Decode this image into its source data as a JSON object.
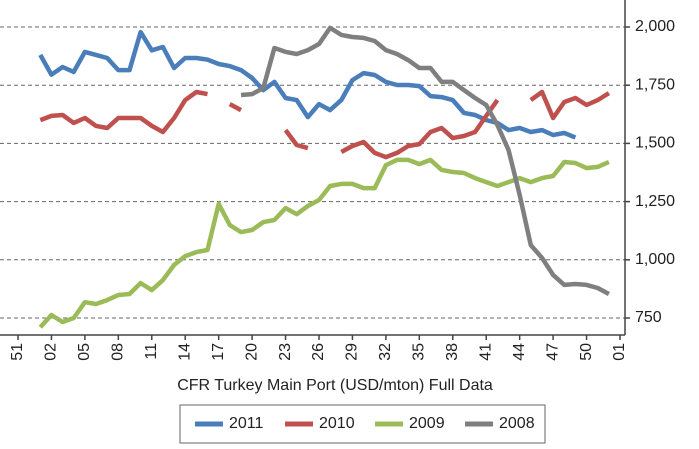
{
  "chart_data": {
    "type": "line",
    "x_label": "CFR Turkey Main Port (USD/mton) Full Data",
    "categories": [
      "51",
      null,
      null,
      "02",
      null,
      null,
      "05",
      null,
      null,
      "08",
      null,
      null,
      "11",
      null,
      null,
      "14",
      null,
      null,
      "17",
      null,
      null,
      "20",
      null,
      null,
      "23",
      null,
      null,
      "26",
      null,
      null,
      "29",
      null,
      null,
      "32",
      null,
      null,
      "35",
      null,
      null,
      "38",
      null,
      null,
      "41",
      null,
      null,
      "44",
      null,
      null,
      "47",
      null,
      null,
      "50",
      null,
      null,
      "01"
    ],
    "ylim": [
      677,
      2116
    ],
    "yticks": [
      750,
      {
        "value": 1000,
        "label": "1,000"
      },
      {
        "value": 1250,
        "label": "1,250"
      },
      {
        "value": 1500,
        "label": "1,500"
      },
      {
        "value": 1750,
        "label": "1,750"
      },
      {
        "value": 2000,
        "label": "2,000"
      }
    ],
    "grid": true,
    "legend": "bottom",
    "series": [
      {
        "name": "2011",
        "color": "#4a7ebb",
        "values": [
          null,
          null,
          1880,
          1795,
          1828,
          1807,
          1893,
          1880,
          1867,
          1815,
          1815,
          1978,
          1900,
          1914,
          1824,
          1867,
          1867,
          1860,
          1841,
          1832,
          1815,
          1781,
          1729,
          1764,
          1695,
          1686,
          1613,
          1669,
          1643,
          1686,
          1772,
          1802,
          1794,
          1764,
          1751,
          1751,
          1746,
          1703,
          1699,
          1686,
          1631,
          1622,
          1600,
          1588,
          1557,
          1566,
          1549,
          1557,
          1536,
          1545,
          1525,
          null,
          null,
          null,
          null
        ]
      },
      {
        "name": "2010",
        "color": "#c0504d",
        "values": [
          null,
          null,
          1600,
          1618,
          1622,
          1588,
          1609,
          1575,
          1566,
          1609,
          1609,
          1609,
          1575,
          1549,
          1609,
          1686,
          1721,
          1712,
          null,
          1669,
          1643,
          null,
          null,
          null,
          1557,
          1493,
          1480,
          null,
          null,
          1463,
          1489,
          1506,
          1459,
          1441,
          1459,
          1489,
          1497,
          1549,
          1566,
          1523,
          1532,
          1549,
          1618,
          1686,
          null,
          null,
          1686,
          1721,
          1609,
          1678,
          1695,
          1665,
          1686,
          1716,
          null
        ]
      },
      {
        "name": "2009",
        "color": "#9bbb59",
        "values": [
          null,
          null,
          710,
          763,
          733,
          750,
          818,
          810,
          827,
          849,
          853,
          900,
          870,
          913,
          978,
          1016,
          1033,
          1042,
          1240,
          1149,
          1119,
          1128,
          1162,
          1171,
          1222,
          1196,
          1231,
          1257,
          1317,
          1326,
          1326,
          1308,
          1308,
          1407,
          1429,
          1429,
          1411,
          1429,
          1386,
          1377,
          1373,
          1351,
          1334,
          1317,
          1334,
          1351,
          1334,
          1351,
          1360,
          1420,
          1416,
          1394,
          1399,
          1420,
          null
        ]
      },
      {
        "name": "2008",
        "color": "#7f7f7f",
        "values": [
          null,
          null,
          null,
          null,
          null,
          null,
          null,
          null,
          null,
          null,
          null,
          null,
          null,
          null,
          null,
          null,
          null,
          null,
          null,
          null,
          1708,
          1712,
          1738,
          1910,
          1893,
          1884,
          1901,
          1927,
          1996,
          1966,
          1957,
          1953,
          1940,
          1901,
          1884,
          1858,
          1824,
          1824,
          1764,
          1764,
          1729,
          1695,
          1665,
          1579,
          1472,
          1278,
          1063,
          1008,
          935,
          892,
          896,
          892,
          879,
          853,
          null
        ]
      }
    ]
  }
}
